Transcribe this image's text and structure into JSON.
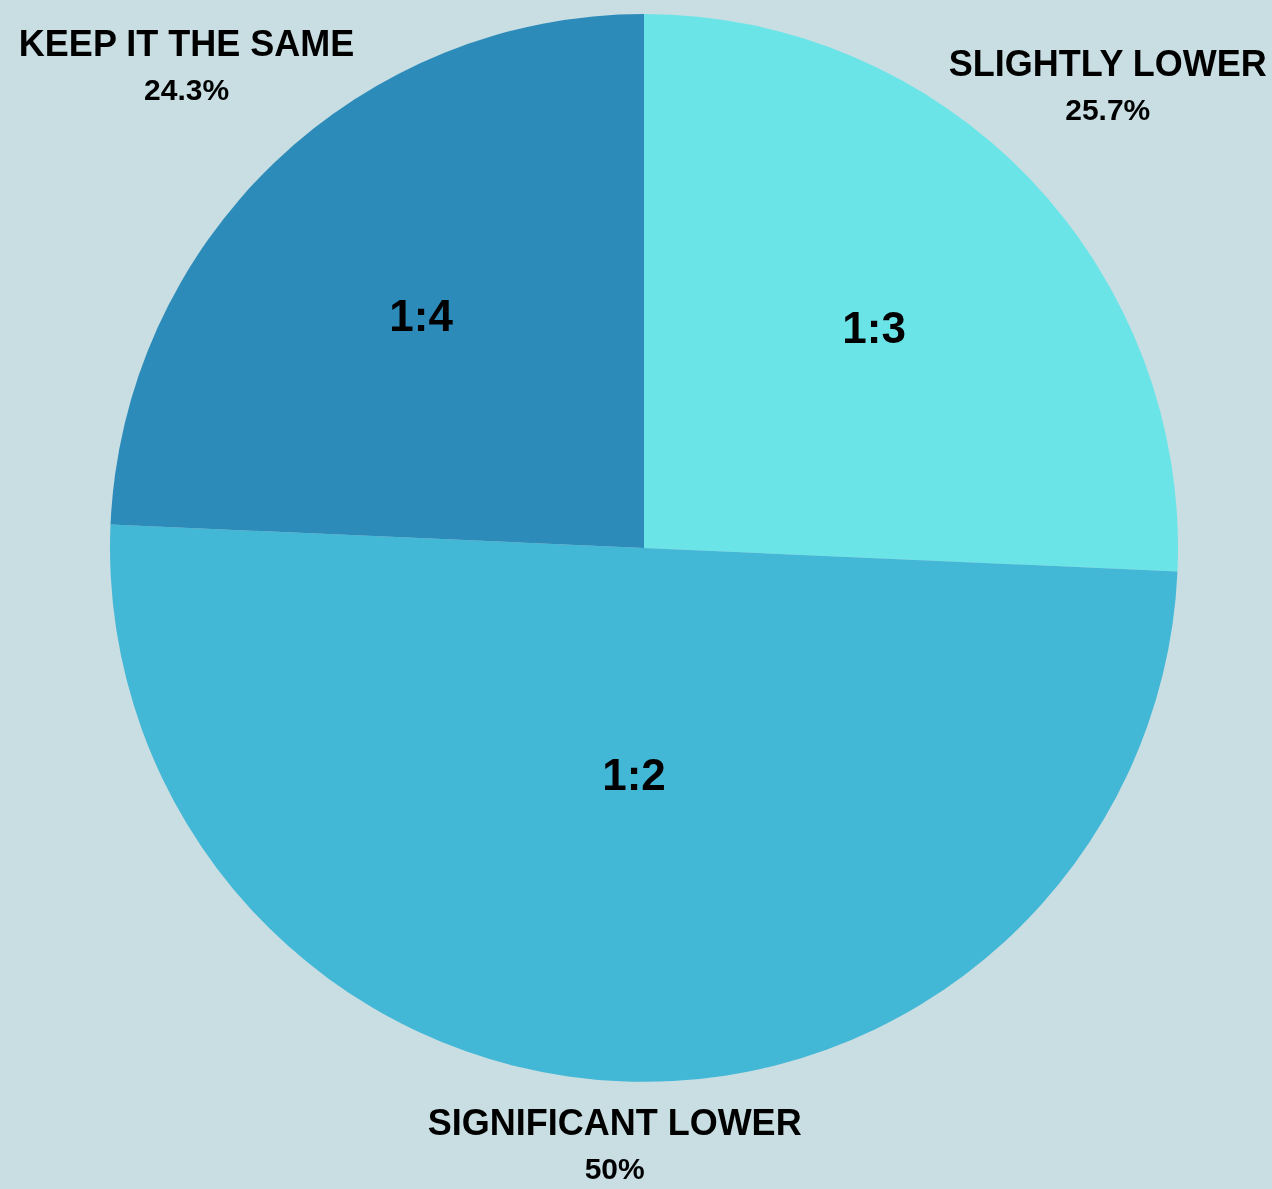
{
  "chart_data": {
    "type": "pie",
    "categories": [
      "SLIGHTLY LOWER",
      "SIGNIFICANT LOWER",
      "KEEP IT THE SAME"
    ],
    "values": [
      25.7,
      50,
      24.3
    ],
    "colors": [
      "#6be4e8",
      "#43b7d6",
      "#2d8bba"
    ],
    "value_labels": [
      "25.7%",
      "50%",
      "24.3%"
    ],
    "annotations": [
      "1:3",
      "1:2",
      "1:4"
    ]
  }
}
